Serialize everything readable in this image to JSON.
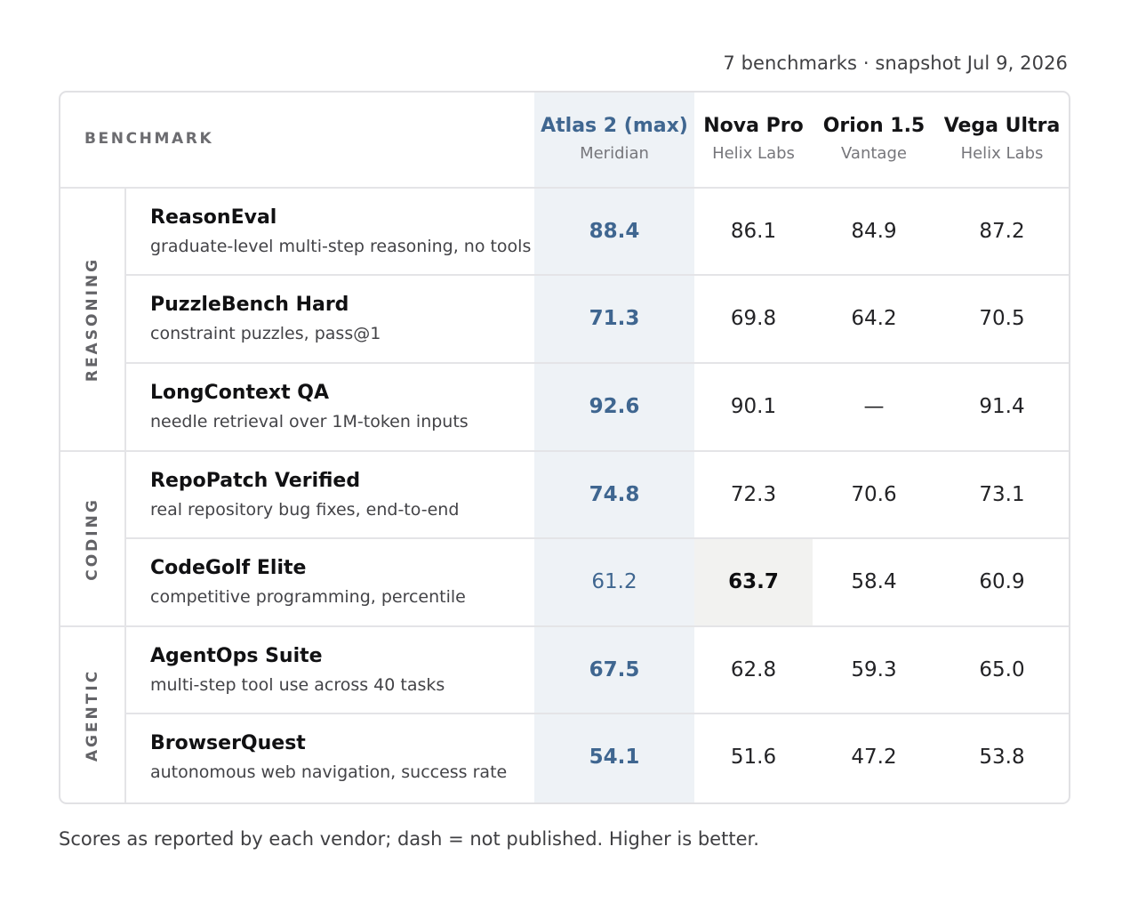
{
  "meta": "7 benchmarks · snapshot Jul 9, 2026",
  "header": {
    "benchmark_label": "BENCHMARK",
    "models": [
      {
        "name": "Atlas 2 (max)",
        "vendor": "Meridian"
      },
      {
        "name": "Nova Pro",
        "vendor": "Helix Labs"
      },
      {
        "name": "Orion 1.5",
        "vendor": "Vantage"
      },
      {
        "name": "Vega Ultra",
        "vendor": "Helix Labs"
      }
    ]
  },
  "groups": [
    {
      "label": "REASONING"
    },
    {
      "label": "CODING"
    },
    {
      "label": "AGENTIC"
    }
  ],
  "rows": [
    {
      "name": "ReasonEval",
      "desc": "graduate-level multi-step reasoning, no tools",
      "scores": [
        "88.4",
        "86.1",
        "84.9",
        "87.2"
      ]
    },
    {
      "name": "PuzzleBench Hard",
      "desc": "constraint puzzles, pass@1",
      "scores": [
        "71.3",
        "69.8",
        "64.2",
        "70.5"
      ]
    },
    {
      "name": "LongContext QA",
      "desc": "needle retrieval over 1M-token inputs",
      "scores": [
        "92.6",
        "90.1",
        "—",
        "91.4"
      ]
    },
    {
      "name": "RepoPatch Verified",
      "desc": "real repository bug fixes, end-to-end",
      "scores": [
        "74.8",
        "72.3",
        "70.6",
        "73.1"
      ]
    },
    {
      "name": "CodeGolf Elite",
      "desc": "competitive programming, percentile",
      "scores": [
        "61.2",
        "63.7",
        "58.4",
        "60.9"
      ]
    },
    {
      "name": "AgentOps Suite",
      "desc": "multi-step tool use across 40 tasks",
      "scores": [
        "67.5",
        "62.8",
        "59.3",
        "65.0"
      ]
    },
    {
      "name": "BrowserQuest",
      "desc": "autonomous web navigation, success rate",
      "scores": [
        "54.1",
        "51.6",
        "47.2",
        "53.8"
      ]
    }
  ],
  "footnote": "Scores as reported by each vendor; dash = not published. Higher is better.",
  "colors": {
    "highlight_model_text": "#3f6690",
    "highlight_column_bg": "#eef2f6",
    "best_cell_bg": "#f2f2f0"
  }
}
